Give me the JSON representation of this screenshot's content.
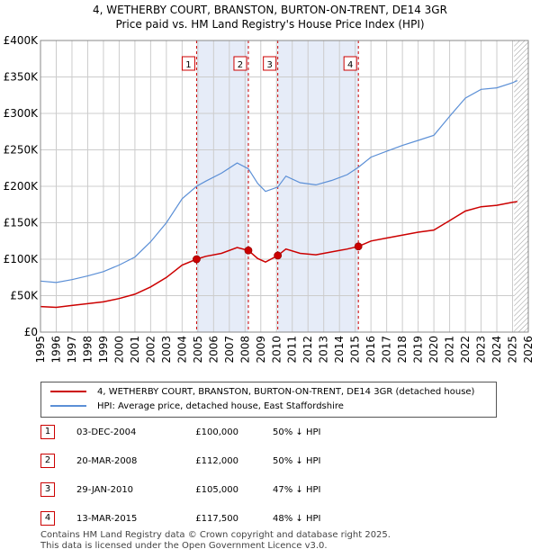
{
  "title_line1": "4, WETHERBY COURT, BRANSTON, BURTON-ON-TRENT, DE14 3GR",
  "title_line2": "Price paid vs. HM Land Registry's House Price Index (HPI)",
  "colors": {
    "property": "#cc0000",
    "hpi": "#5b8fd6",
    "shade": "#e6ecf8",
    "grid": "#cccccc",
    "vline": "#cc0000"
  },
  "chart_data": {
    "type": "line",
    "title": "Price paid vs. HM Land Registry's House Price Index (HPI)",
    "xlabel": "",
    "ylabel": "",
    "xlim": [
      1995,
      2026
    ],
    "ylim": [
      0,
      400000
    ],
    "yticks": [
      {
        "value": 0,
        "label": "£0"
      },
      {
        "value": 50000,
        "label": "£50K"
      },
      {
        "value": 100000,
        "label": "£100K"
      },
      {
        "value": 150000,
        "label": "£150K"
      },
      {
        "value": 200000,
        "label": "£200K"
      },
      {
        "value": 250000,
        "label": "£250K"
      },
      {
        "value": 300000,
        "label": "£300K"
      },
      {
        "value": 350000,
        "label": "£350K"
      },
      {
        "value": 400000,
        "label": "£400K"
      }
    ],
    "xticks": [
      "1995",
      "1996",
      "1997",
      "1998",
      "1999",
      "2000",
      "2001",
      "2002",
      "2003",
      "2004",
      "2005",
      "2006",
      "2007",
      "2008",
      "2009",
      "2010",
      "2011",
      "2012",
      "2013",
      "2014",
      "2015",
      "2016",
      "2017",
      "2018",
      "2019",
      "2020",
      "2021",
      "2022",
      "2023",
      "2024",
      "2025",
      "2026"
    ],
    "shaded_ranges": [
      [
        2004.92,
        2008.21
      ],
      [
        2010.08,
        2015.2
      ]
    ],
    "hatch_from": 2025.1,
    "series": [
      {
        "name": "4, WETHERBY COURT, BRANSTON, BURTON-ON-TRENT, DE14 3GR (detached house)",
        "color": "#cc0000",
        "points": [
          [
            1995.0,
            35000
          ],
          [
            1996.0,
            34000
          ],
          [
            1997.0,
            36500
          ],
          [
            1998.0,
            39000
          ],
          [
            1999.0,
            41500
          ],
          [
            2000.0,
            46000
          ],
          [
            2001.0,
            52000
          ],
          [
            2002.0,
            62000
          ],
          [
            2003.0,
            75000
          ],
          [
            2004.0,
            92000
          ],
          [
            2004.92,
            100000
          ],
          [
            2005.5,
            104000
          ],
          [
            2006.5,
            108000
          ],
          [
            2007.5,
            116000
          ],
          [
            2008.21,
            112000
          ],
          [
            2008.8,
            101000
          ],
          [
            2009.3,
            96000
          ],
          [
            2010.08,
            105000
          ],
          [
            2010.6,
            114000
          ],
          [
            2011.5,
            108000
          ],
          [
            2012.5,
            106000
          ],
          [
            2013.5,
            110000
          ],
          [
            2014.5,
            114000
          ],
          [
            2015.2,
            117500
          ],
          [
            2016.0,
            125000
          ],
          [
            2017.0,
            129000
          ],
          [
            2018.0,
            133000
          ],
          [
            2019.0,
            137000
          ],
          [
            2020.0,
            140000
          ],
          [
            2021.0,
            153000
          ],
          [
            2022.0,
            166000
          ],
          [
            2023.0,
            172000
          ],
          [
            2024.0,
            174000
          ],
          [
            2025.0,
            178000
          ],
          [
            2025.3,
            179000
          ]
        ]
      },
      {
        "name": "HPI: Average price, detached house, East Staffordshire",
        "color": "#5b8fd6",
        "points": [
          [
            1995.0,
            70000
          ],
          [
            1996.0,
            68000
          ],
          [
            1997.0,
            72000
          ],
          [
            1998.0,
            77000
          ],
          [
            1999.0,
            83000
          ],
          [
            2000.0,
            92000
          ],
          [
            2001.0,
            103000
          ],
          [
            2002.0,
            124000
          ],
          [
            2003.0,
            150000
          ],
          [
            2004.0,
            183000
          ],
          [
            2004.92,
            200000
          ],
          [
            2005.5,
            207000
          ],
          [
            2006.5,
            218000
          ],
          [
            2007.5,
            232000
          ],
          [
            2008.21,
            224000
          ],
          [
            2008.8,
            204000
          ],
          [
            2009.3,
            193000
          ],
          [
            2010.08,
            199000
          ],
          [
            2010.6,
            214000
          ],
          [
            2011.5,
            205000
          ],
          [
            2012.5,
            202000
          ],
          [
            2013.5,
            208000
          ],
          [
            2014.5,
            216000
          ],
          [
            2015.2,
            226000
          ],
          [
            2016.0,
            240000
          ],
          [
            2017.0,
            248000
          ],
          [
            2018.0,
            256000
          ],
          [
            2019.0,
            263000
          ],
          [
            2020.0,
            270000
          ],
          [
            2021.0,
            296000
          ],
          [
            2022.0,
            321000
          ],
          [
            2023.0,
            333000
          ],
          [
            2024.0,
            335000
          ],
          [
            2025.0,
            342000
          ],
          [
            2025.3,
            345000
          ]
        ]
      }
    ],
    "sales": [
      {
        "num": "1",
        "x": 2004.92,
        "price": 100000
      },
      {
        "num": "2",
        "x": 2008.21,
        "price": 112000
      },
      {
        "num": "3",
        "x": 2010.08,
        "price": 105000
      },
      {
        "num": "4",
        "x": 2015.2,
        "price": 117500
      }
    ]
  },
  "legend": {
    "property_label": "4, WETHERBY COURT, BRANSTON, BURTON-ON-TRENT, DE14 3GR (detached house)",
    "hpi_label": "HPI: Average price, detached house, East Staffordshire"
  },
  "sales_table": [
    {
      "num": "1",
      "date": "03-DEC-2004",
      "price": "£100,000",
      "hpi": "50% ↓ HPI"
    },
    {
      "num": "2",
      "date": "20-MAR-2008",
      "price": "£112,000",
      "hpi": "50% ↓ HPI"
    },
    {
      "num": "3",
      "date": "29-JAN-2010",
      "price": "£105,000",
      "hpi": "47% ↓ HPI"
    },
    {
      "num": "4",
      "date": "13-MAR-2015",
      "price": "£117,500",
      "hpi": "48% ↓ HPI"
    }
  ],
  "footer": {
    "line1": "Contains HM Land Registry data © Crown copyright and database right 2025.",
    "line2": "This data is licensed under the Open Government Licence v3.0."
  }
}
